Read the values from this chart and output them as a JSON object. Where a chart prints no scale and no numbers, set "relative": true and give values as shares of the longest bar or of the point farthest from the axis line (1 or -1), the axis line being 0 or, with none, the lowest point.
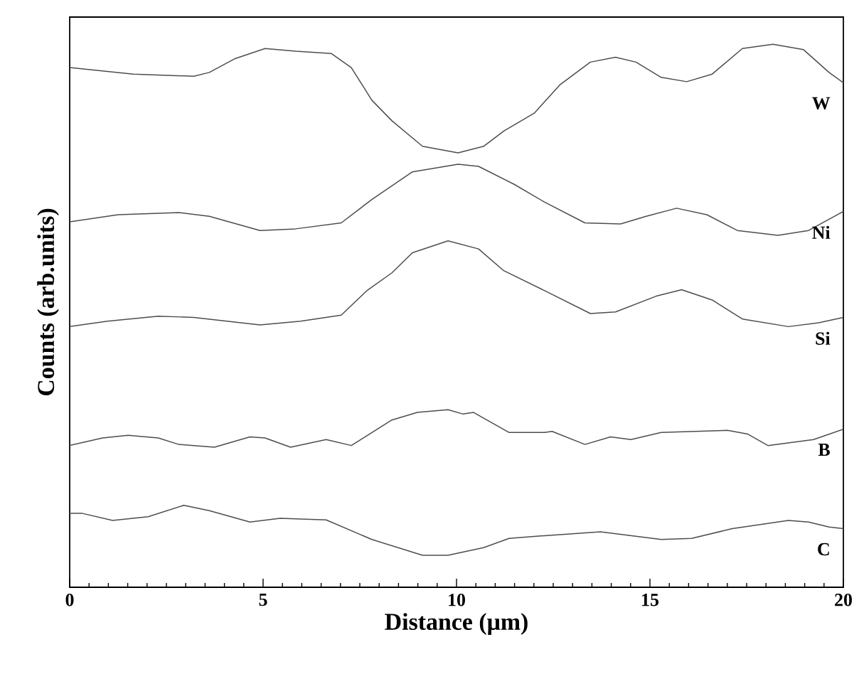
{
  "chart_data": {
    "type": "line",
    "relative": true,
    "xlabel": "Distance (μm)",
    "ylabel": "Counts (arb.units)",
    "xlim": [
      0,
      20
    ],
    "xticks": [
      0,
      5,
      10,
      15,
      20
    ],
    "grid": false,
    "legend": false,
    "marker": "none",
    "line_style": "solid",
    "series": [
      {
        "name": "W",
        "color": "#4d4d4d",
        "x": [
          0,
          1.64,
          3.21,
          3.61,
          4.26,
          5.05,
          5.84,
          6.76,
          7.28,
          7.81,
          8.33,
          9.12,
          10.04,
          10.7,
          11.22,
          12.01,
          12.67,
          13.46,
          14.11,
          14.64,
          15.29,
          15.95,
          16.61,
          17.39,
          18.18,
          18.97,
          19.63,
          20
        ],
        "values": [
          0.957,
          0.945,
          0.941,
          0.948,
          0.973,
          0.992,
          0.987,
          0.983,
          0.957,
          0.897,
          0.859,
          0.812,
          0.8,
          0.812,
          0.84,
          0.873,
          0.925,
          0.967,
          0.976,
          0.967,
          0.939,
          0.931,
          0.945,
          0.992,
          1.0,
          0.99,
          0.948,
          0.929
        ]
      },
      {
        "name": "Ni",
        "color": "#4d4d4d",
        "x": [
          0,
          1.25,
          2.82,
          3.61,
          4.92,
          5.84,
          7.02,
          7.81,
          8.86,
          10.04,
          10.57,
          11.49,
          12.28,
          13.32,
          14.24,
          14.9,
          15.69,
          16.47,
          17.26,
          18.31,
          19.1,
          20
        ],
        "values": [
          0.673,
          0.686,
          0.69,
          0.683,
          0.657,
          0.66,
          0.671,
          0.714,
          0.765,
          0.779,
          0.775,
          0.742,
          0.709,
          0.671,
          0.669,
          0.683,
          0.698,
          0.686,
          0.657,
          0.648,
          0.657,
          0.692
        ]
      },
      {
        "name": "Si",
        "color": "#4d4d4d",
        "x": [
          0,
          0.98,
          2.29,
          3.21,
          4.92,
          5.97,
          7.02,
          7.68,
          8.33,
          8.86,
          9.78,
          10.57,
          11.22,
          12.28,
          13.46,
          14.11,
          15.16,
          15.82,
          16.61,
          17.39,
          18.58,
          19.36,
          20
        ],
        "values": [
          0.48,
          0.49,
          0.499,
          0.497,
          0.483,
          0.49,
          0.501,
          0.546,
          0.579,
          0.616,
          0.638,
          0.623,
          0.583,
          0.546,
          0.504,
          0.507,
          0.536,
          0.548,
          0.529,
          0.494,
          0.48,
          0.487,
          0.497
        ]
      },
      {
        "name": "B",
        "color": "#4d4d4d",
        "x": [
          0,
          0.85,
          1.51,
          2.29,
          2.82,
          3.74,
          4.66,
          5.05,
          5.71,
          6.63,
          7.28,
          8.33,
          8.99,
          9.78,
          10.17,
          10.44,
          11.36,
          12.28,
          12.47,
          13.32,
          13.98,
          14.51,
          15.29,
          17.0,
          17.53,
          18.05,
          19.23,
          20
        ],
        "values": [
          0.261,
          0.275,
          0.28,
          0.275,
          0.263,
          0.258,
          0.277,
          0.275,
          0.258,
          0.272,
          0.261,
          0.308,
          0.322,
          0.327,
          0.319,
          0.322,
          0.285,
          0.285,
          0.287,
          0.263,
          0.277,
          0.272,
          0.285,
          0.289,
          0.282,
          0.261,
          0.272,
          0.291
        ]
      },
      {
        "name": "C",
        "color": "#4d4d4d",
        "x": [
          0,
          0.33,
          1.11,
          2.03,
          2.95,
          3.61,
          4.66,
          5.44,
          6.63,
          7.81,
          9.12,
          9.78,
          10.7,
          11.36,
          12.28,
          13.72,
          15.29,
          16.08,
          17.13,
          18.58,
          19.1,
          19.63,
          20
        ],
        "values": [
          0.136,
          0.136,
          0.123,
          0.13,
          0.151,
          0.141,
          0.12,
          0.127,
          0.124,
          0.088,
          0.059,
          0.059,
          0.073,
          0.09,
          0.095,
          0.102,
          0.088,
          0.09,
          0.108,
          0.123,
          0.12,
          0.111,
          0.108
        ]
      }
    ]
  }
}
